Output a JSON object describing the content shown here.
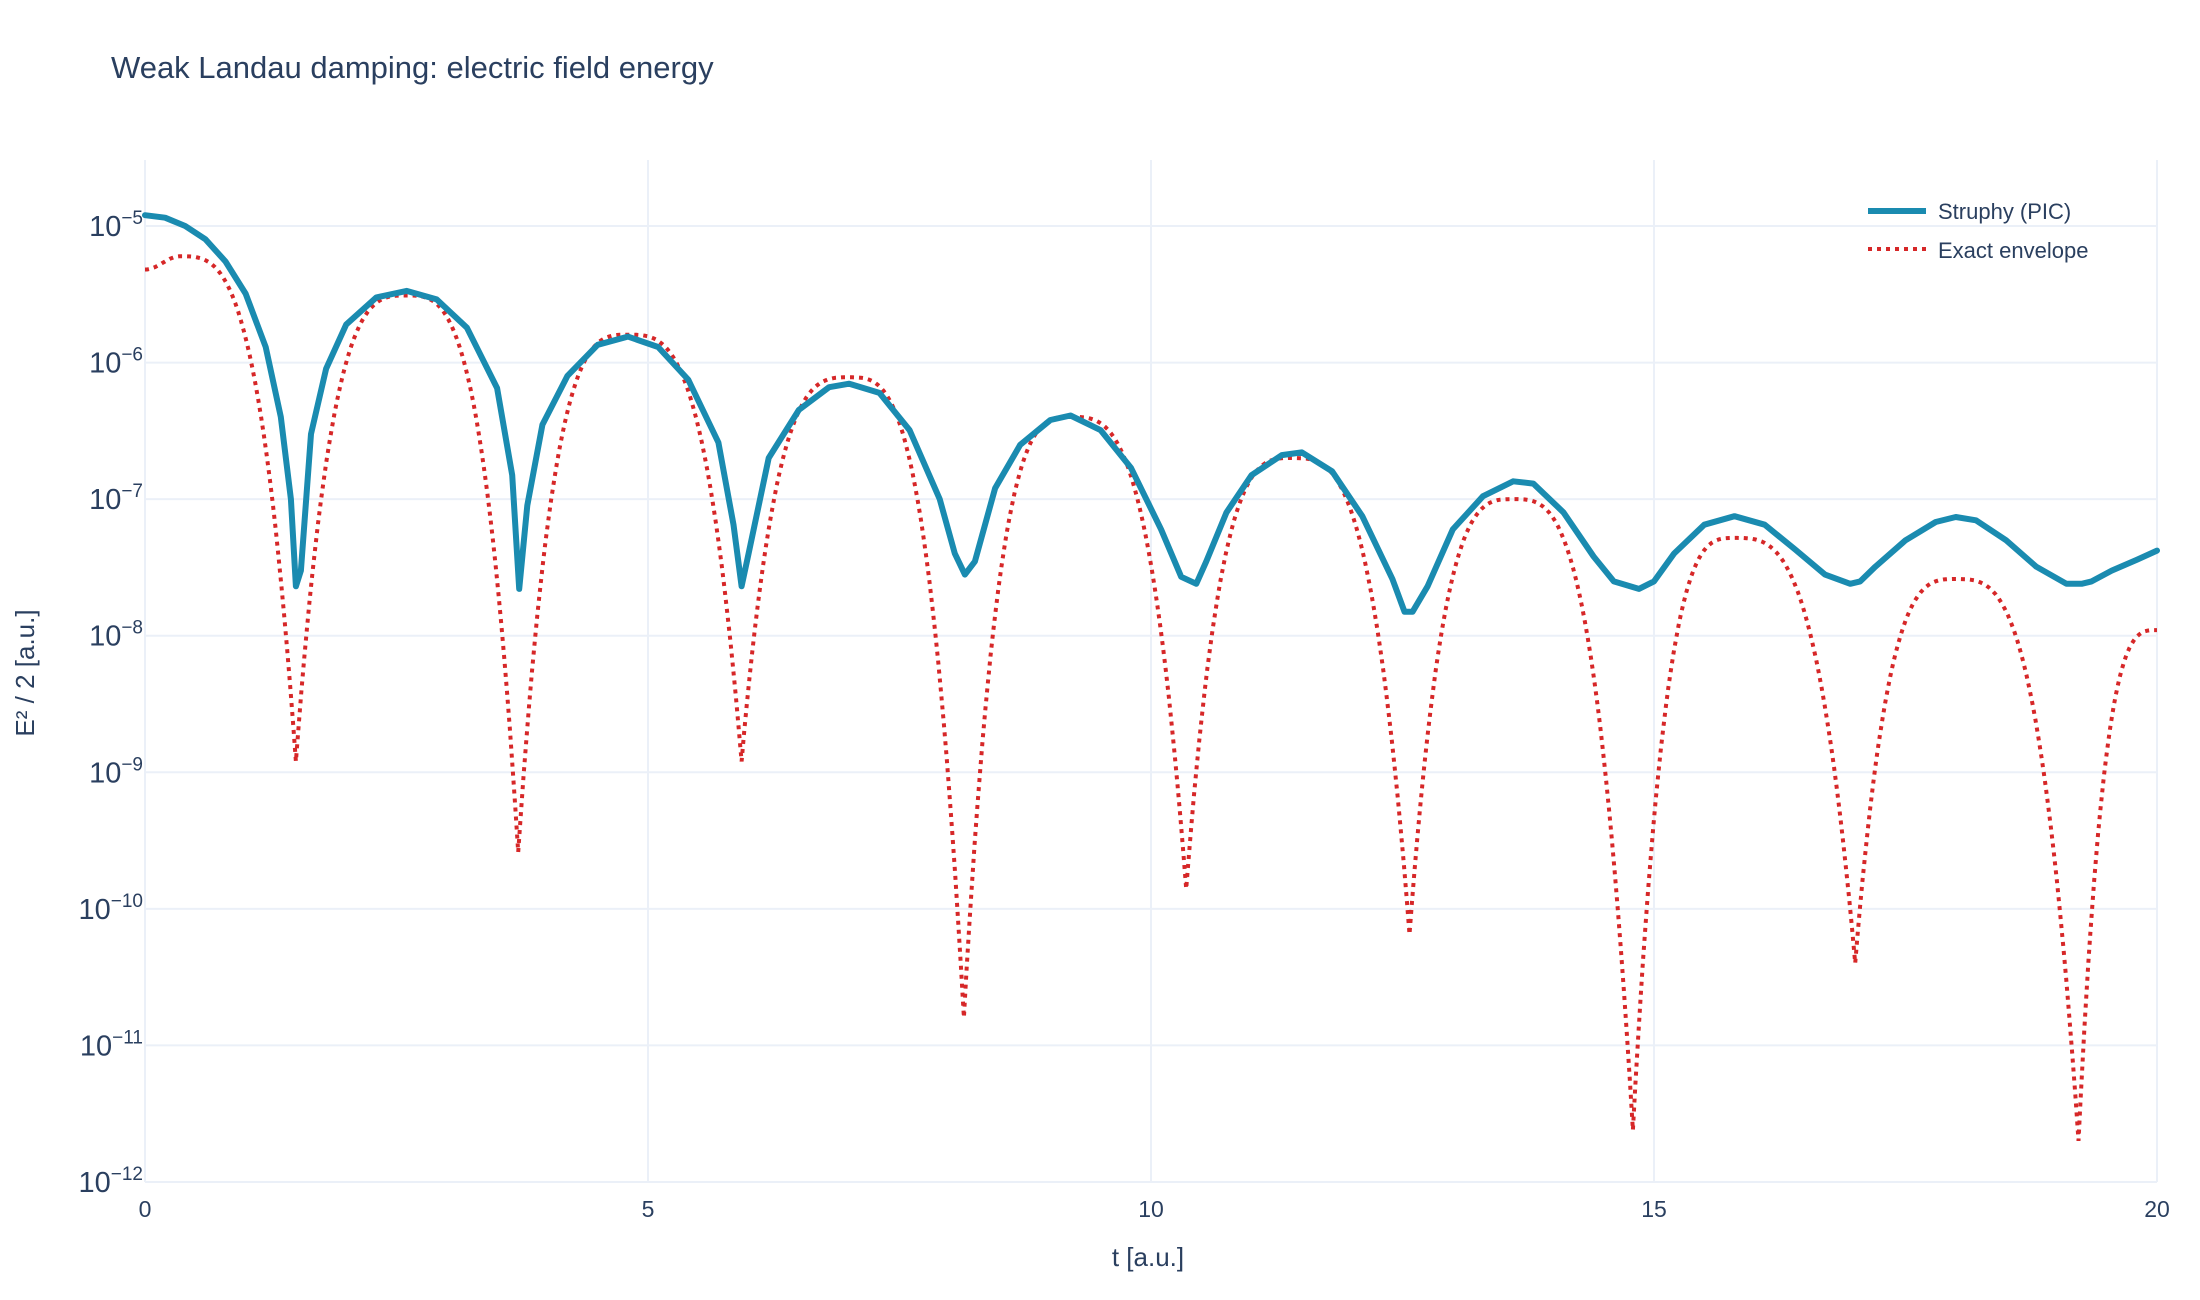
{
  "chart_data": {
    "type": "line",
    "title": "Weak Landau damping: electric field energy",
    "xlabel": "t [a.u.]",
    "ylabel": "E² / 2 [a.u.]",
    "xlim": [
      0,
      20
    ],
    "ylim": [
      1e-12,
      3e-05
    ],
    "y_scale": "log",
    "grid": true,
    "legend_position": "top-right",
    "x_ticks": [
      {
        "value": 0,
        "label": "0"
      },
      {
        "value": 5,
        "label": "5"
      },
      {
        "value": 10,
        "label": "10"
      },
      {
        "value": 15,
        "label": "15"
      },
      {
        "value": 20,
        "label": "20"
      }
    ],
    "y_ticks": [
      {
        "value": 1e-05,
        "mantissa": "10",
        "exponent": "−5"
      },
      {
        "value": 1e-06,
        "mantissa": "10",
        "exponent": "−6"
      },
      {
        "value": 1e-07,
        "mantissa": "10",
        "exponent": "−7"
      },
      {
        "value": 1e-08,
        "mantissa": "10",
        "exponent": "−8"
      },
      {
        "value": 1e-09,
        "mantissa": "10",
        "exponent": "−9"
      },
      {
        "value": 1e-10,
        "mantissa": "10",
        "exponent": "−10"
      },
      {
        "value": 1e-11,
        "mantissa": "10",
        "exponent": "−11"
      },
      {
        "value": 1e-12,
        "mantissa": "10",
        "exponent": "−12"
      }
    ],
    "series": [
      {
        "name": "Struphy (PIC)",
        "color": "#1a8bb0",
        "style": "solid",
        "x": [
          0,
          0.2,
          0.4,
          0.6,
          0.8,
          1.0,
          1.2,
          1.35,
          1.45,
          1.5,
          1.55,
          1.65,
          1.8,
          2.0,
          2.3,
          2.6,
          2.9,
          3.2,
          3.5,
          3.65,
          3.72,
          3.8,
          3.95,
          4.2,
          4.5,
          4.8,
          5.1,
          5.4,
          5.7,
          5.85,
          5.93,
          6.0,
          6.2,
          6.5,
          6.8,
          7.0,
          7.3,
          7.6,
          7.9,
          8.05,
          8.15,
          8.25,
          8.45,
          8.7,
          9.0,
          9.2,
          9.5,
          9.8,
          10.1,
          10.3,
          10.45,
          10.55,
          10.75,
          11.0,
          11.3,
          11.5,
          11.8,
          12.1,
          12.4,
          12.52,
          12.6,
          12.75,
          13.0,
          13.3,
          13.6,
          13.8,
          14.1,
          14.4,
          14.6,
          14.85,
          15.0,
          15.2,
          15.5,
          15.8,
          16.1,
          16.4,
          16.7,
          16.95,
          17.05,
          17.2,
          17.5,
          17.8,
          18.0,
          18.2,
          18.5,
          18.8,
          19.1,
          19.25,
          19.35,
          19.55,
          19.8,
          20.0
        ],
        "y": [
          1.2e-05,
          1.15e-05,
          1e-05,
          8e-06,
          5.5e-06,
          3.2e-06,
          1.3e-06,
          4e-07,
          1e-07,
          2.3e-08,
          3e-08,
          3e-07,
          9e-07,
          1.9e-06,
          3e-06,
          3.35e-06,
          2.9e-06,
          1.8e-06,
          6.5e-07,
          1.5e-07,
          2.2e-08,
          9e-08,
          3.5e-07,
          8e-07,
          1.35e-06,
          1.55e-06,
          1.3e-06,
          7.5e-07,
          2.6e-07,
          6.5e-08,
          2.3e-08,
          4e-08,
          2e-07,
          4.5e-07,
          6.6e-07,
          7e-07,
          6e-07,
          3.2e-07,
          1e-07,
          4e-08,
          2.8e-08,
          3.5e-08,
          1.2e-07,
          2.5e-07,
          3.8e-07,
          4.1e-07,
          3.2e-07,
          1.7e-07,
          6e-08,
          2.7e-08,
          2.4e-08,
          3.5e-08,
          8e-08,
          1.5e-07,
          2.1e-07,
          2.2e-07,
          1.6e-07,
          7.5e-08,
          2.6e-08,
          1.5e-08,
          1.5e-08,
          2.3e-08,
          6e-08,
          1.05e-07,
          1.35e-07,
          1.3e-07,
          8e-08,
          3.8e-08,
          2.5e-08,
          2.2e-08,
          2.5e-08,
          4e-08,
          6.5e-08,
          7.5e-08,
          6.5e-08,
          4.3e-08,
          2.8e-08,
          2.4e-08,
          2.5e-08,
          3.2e-08,
          5e-08,
          6.8e-08,
          7.4e-08,
          7e-08,
          5e-08,
          3.2e-08,
          2.4e-08,
          2.4e-08,
          2.5e-08,
          3e-08,
          3.6e-08,
          4.2e-08
        ]
      },
      {
        "name": "Exact envelope",
        "color": "#d62728",
        "style": "dotted",
        "dips": [
          {
            "t": 1.5,
            "y": 1.2e-09
          },
          {
            "t": 3.71,
            "y": 2.6e-10
          },
          {
            "t": 5.93,
            "y": 1.2e-09
          },
          {
            "t": 8.14,
            "y": 1.6e-11
          },
          {
            "t": 10.35,
            "y": 1.4e-10
          },
          {
            "t": 12.57,
            "y": 6.5e-11
          },
          {
            "t": 14.79,
            "y": 2.4e-12
          },
          {
            "t": 17.0,
            "y": 4e-11
          },
          {
            "t": 19.22,
            "y": 2e-12
          }
        ],
        "peaks": [
          {
            "t": 0.35,
            "y": 6e-06
          },
          {
            "t": 2.6,
            "y": 3.1e-06
          },
          {
            "t": 4.8,
            "y": 1.6e-06
          },
          {
            "t": 7.0,
            "y": 7.8e-07
          },
          {
            "t": 9.2,
            "y": 4e-07
          },
          {
            "t": 11.4,
            "y": 2e-07
          },
          {
            "t": 13.6,
            "y": 1e-07
          },
          {
            "t": 15.8,
            "y": 5.2e-08
          },
          {
            "t": 18.0,
            "y": 2.6e-08
          }
        ],
        "y_at_t0": 4.8e-06,
        "y_at_t20": 1.1e-08
      }
    ]
  }
}
